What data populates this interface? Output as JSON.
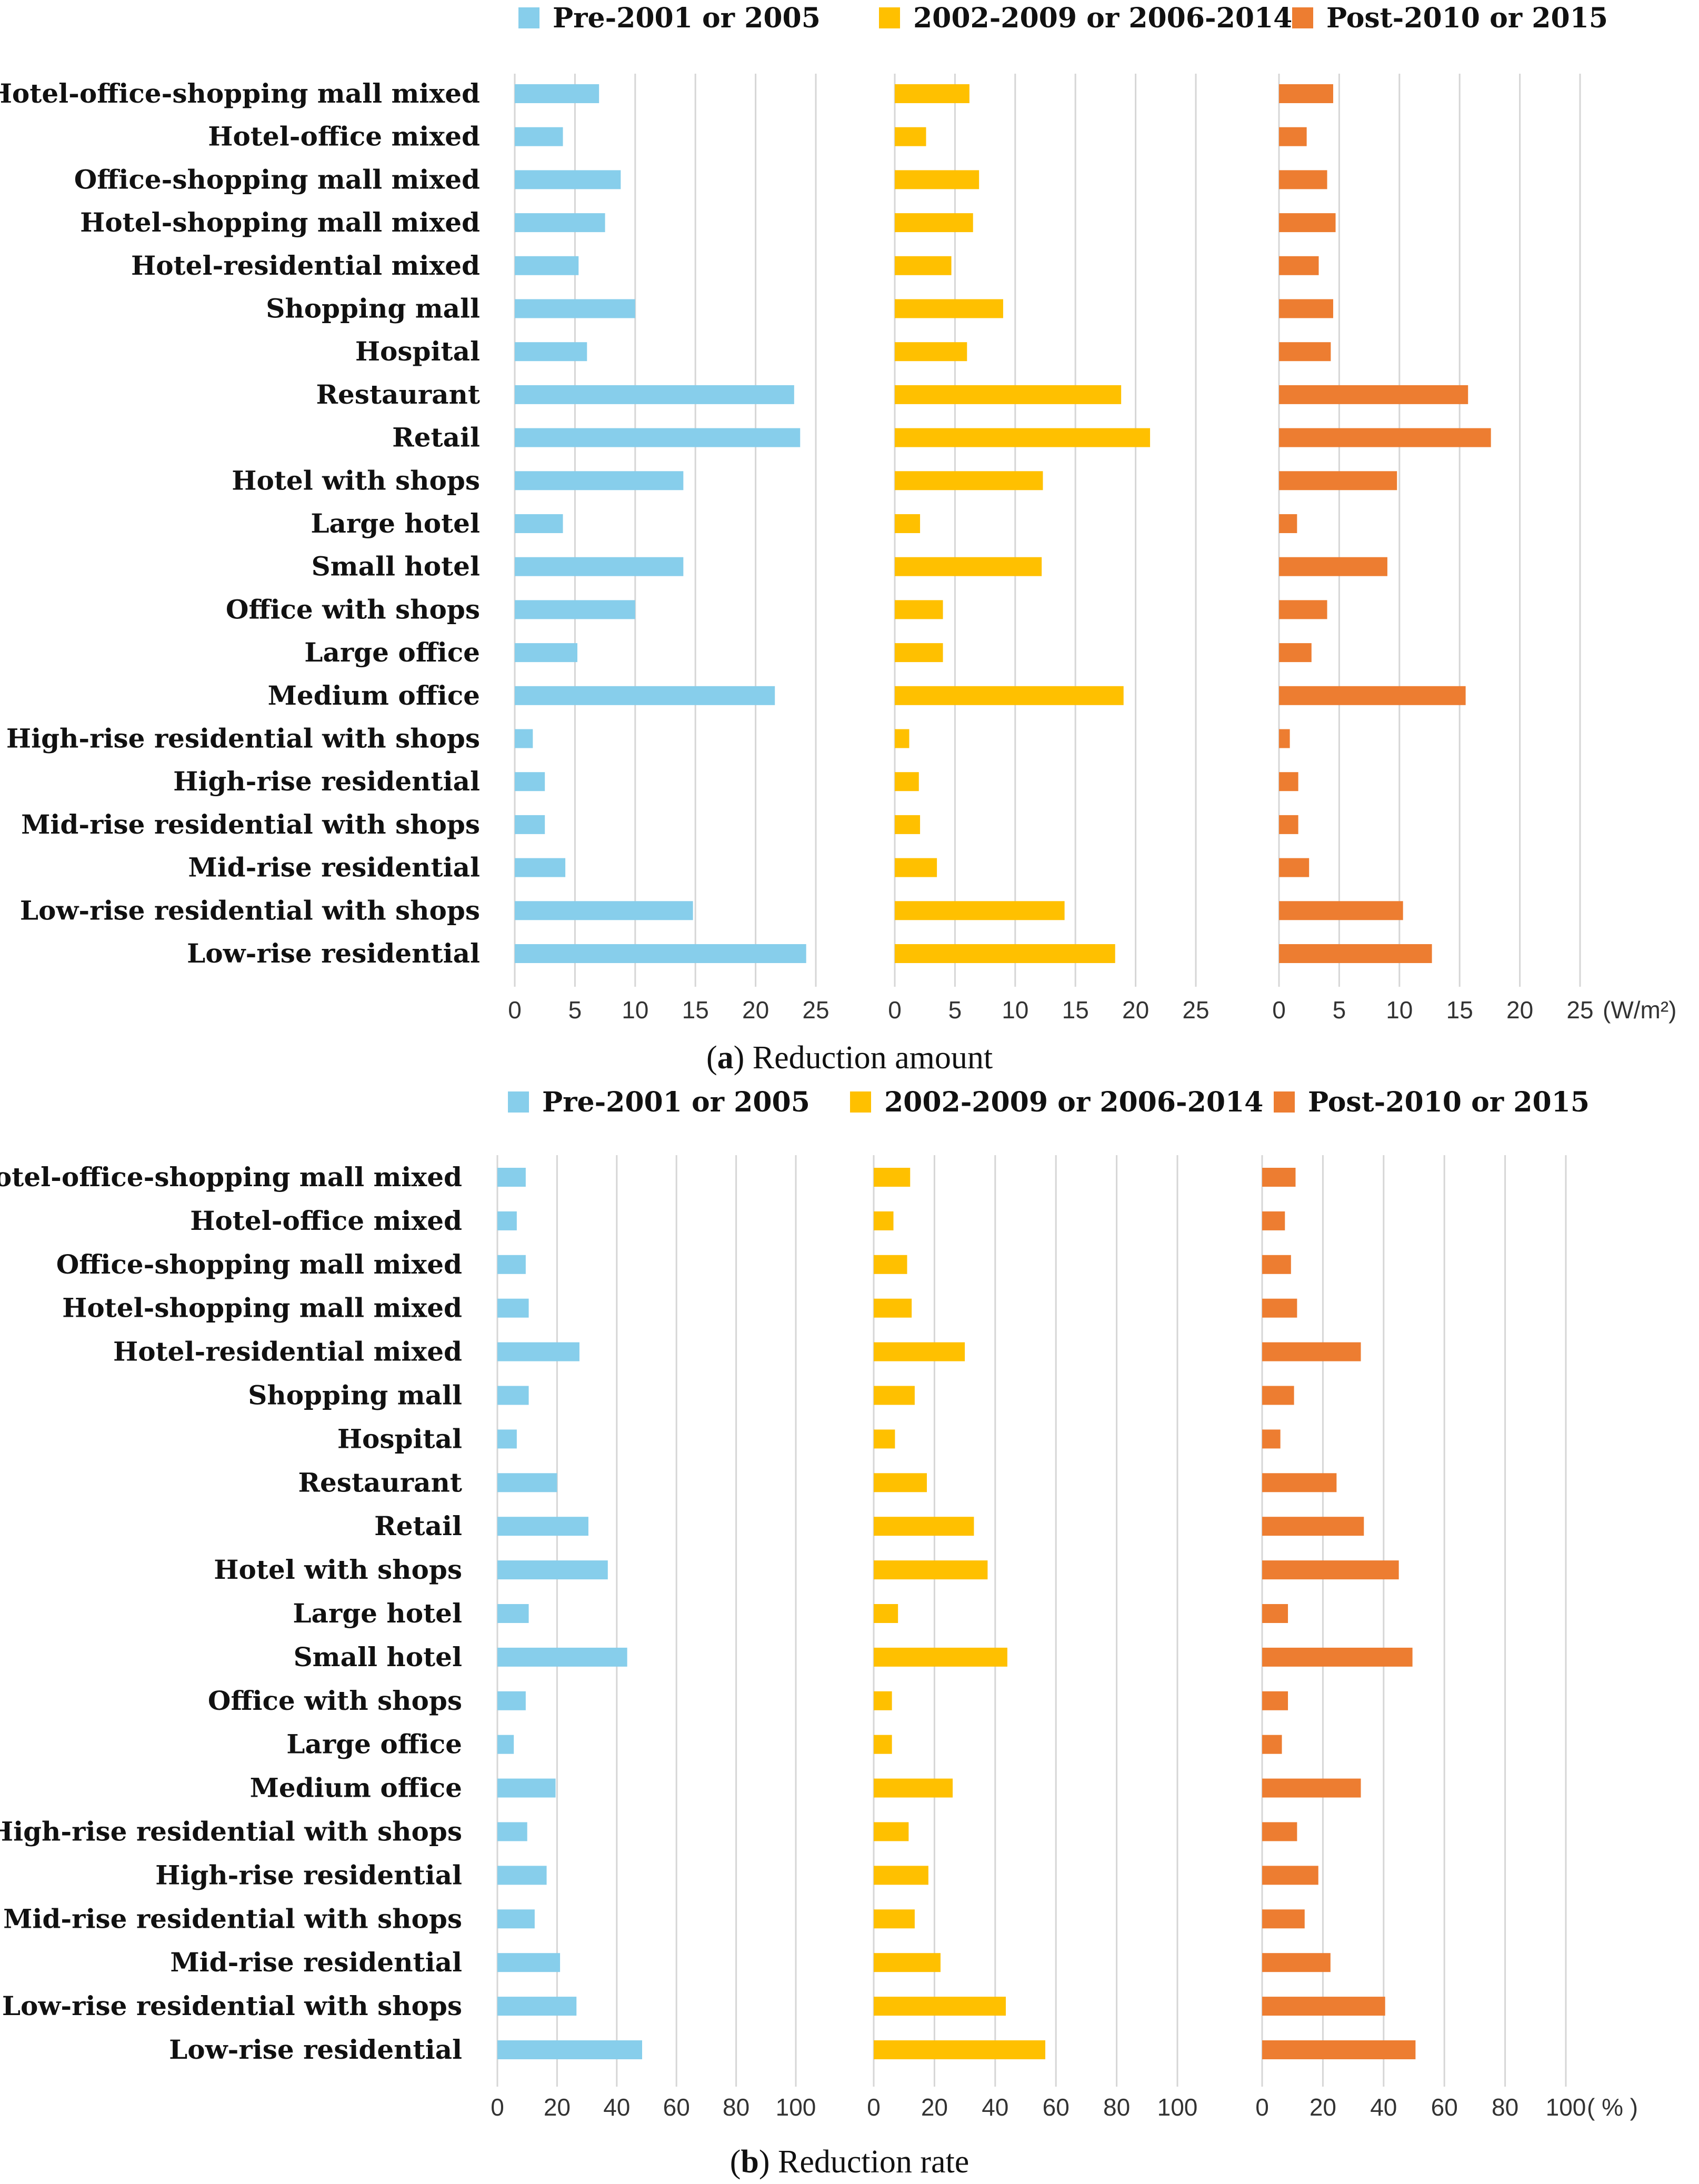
{
  "chart_data": [
    {
      "type": "bar",
      "orientation": "horizontal",
      "title": "Reduction amount",
      "caption": {
        "open": "(",
        "letter": "a",
        "close": ")",
        "text": "Reduction amount"
      },
      "unit": "(W/m²)",
      "categories": [
        "Hotel-office-shopping mall mixed",
        "Hotel-office mixed",
        "Office-shopping mall mixed",
        "Hotel-shopping mall mixed",
        "Hotel-residential mixed",
        "Shopping mall",
        "Hospital",
        "Restaurant",
        "Retail",
        "Hotel with shops",
        "Large hotel",
        "Small hotel",
        "Office with shops",
        "Large office",
        "Medium office",
        "High-rise residential with shops",
        "High-rise residential",
        "Mid-rise residential with shops",
        "Mid-rise residential",
        "Low-rise residential with shops",
        "Low-rise residential"
      ],
      "xlim": [
        0,
        25
      ],
      "ticks": [
        "0",
        "5",
        "10",
        "15",
        "20",
        "25"
      ],
      "series": [
        {
          "name": "Pre-2001 or 2005",
          "color": "#87CEEB",
          "values": [
            7.0,
            4.0,
            8.8,
            7.5,
            5.3,
            10.0,
            6.0,
            23.2,
            23.7,
            14.0,
            4.0,
            14.0,
            10.0,
            5.2,
            21.6,
            1.5,
            2.5,
            2.5,
            4.2,
            14.8,
            24.2
          ]
        },
        {
          "name": "2002-2009 or 2006-2014",
          "color": "#FFC000",
          "values": [
            6.2,
            2.6,
            7.0,
            6.5,
            4.7,
            9.0,
            6.0,
            18.8,
            21.2,
            12.3,
            2.1,
            12.2,
            4.0,
            4.0,
            19.0,
            1.2,
            2.0,
            2.1,
            3.5,
            14.1,
            18.3
          ]
        },
        {
          "name": "Post-2010 or 2015",
          "color": "#ED7D31",
          "values": [
            4.5,
            2.3,
            4.0,
            4.7,
            3.3,
            4.5,
            4.3,
            15.7,
            17.6,
            9.8,
            1.5,
            9.0,
            4.0,
            2.7,
            15.5,
            0.9,
            1.6,
            1.6,
            2.5,
            10.3,
            12.7
          ]
        }
      ]
    },
    {
      "type": "bar",
      "orientation": "horizontal",
      "title": "Reduction rate",
      "caption": {
        "open": "(",
        "letter": "b",
        "close": ")",
        "text": "Reduction rate"
      },
      "unit": "( % )",
      "categories": [
        "Hotel-office-shopping mall mixed",
        "Hotel-office mixed",
        "Office-shopping mall mixed",
        "Hotel-shopping mall mixed",
        "Hotel-residential mixed",
        "Shopping mall",
        "Hospital",
        "Restaurant",
        "Retail",
        "Hotel with shops",
        "Large hotel",
        "Small hotel",
        "Office with shops",
        "Large office",
        "Medium office",
        "High-rise residential with shops",
        "High-rise residential",
        "Mid-rise residential with shops",
        "Mid-rise residential",
        "Low-rise residential with shops",
        "Low-rise residential"
      ],
      "xlim": [
        0,
        100
      ],
      "ticks": [
        "0",
        "20",
        "40",
        "60",
        "80",
        "100"
      ],
      "series": [
        {
          "name": "Pre-2001 or 2005",
          "color": "#87CEEB",
          "values": [
            9.5,
            6.5,
            9.5,
            10.5,
            27.5,
            10.5,
            6.5,
            20.0,
            30.5,
            37.0,
            10.5,
            43.5,
            9.5,
            5.5,
            19.5,
            10.0,
            16.5,
            12.5,
            21.0,
            26.5,
            48.5
          ]
        },
        {
          "name": "2002-2009 or 2006-2014",
          "color": "#FFC000",
          "values": [
            12.0,
            6.5,
            11.0,
            12.5,
            30.0,
            13.5,
            7.0,
            17.5,
            33.0,
            37.5,
            8.0,
            44.0,
            6.0,
            6.0,
            26.0,
            11.5,
            18.0,
            13.5,
            22.0,
            43.5,
            56.5
          ]
        },
        {
          "name": "Post-2010 or 2015",
          "color": "#ED7D31",
          "values": [
            11.0,
            7.5,
            9.5,
            11.5,
            32.5,
            10.5,
            6.0,
            24.5,
            33.5,
            45.0,
            8.5,
            49.5,
            8.5,
            6.5,
            32.5,
            11.5,
            18.5,
            14.0,
            22.5,
            40.5,
            50.5
          ]
        }
      ]
    }
  ]
}
